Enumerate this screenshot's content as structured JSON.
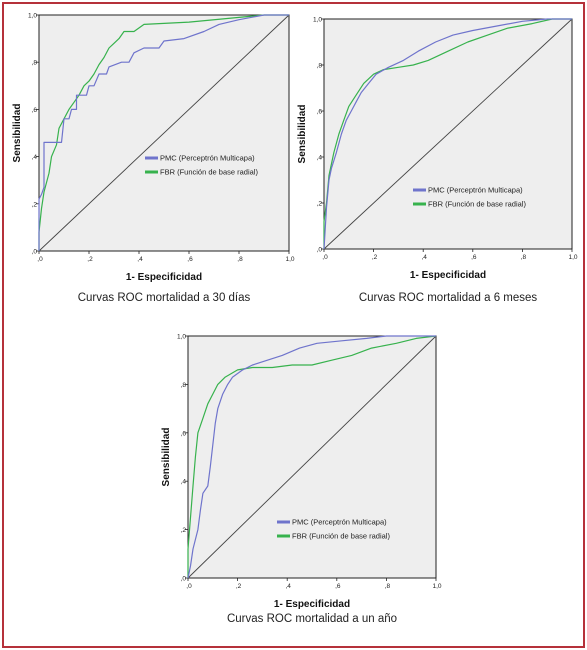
{
  "colors": {
    "frame": "#b5313a",
    "plot_bg": "#eeeeee",
    "pmc": "#6f74cc",
    "fbr": "#37b24d",
    "diagonal": "#444444"
  },
  "chart_data": [
    {
      "type": "line",
      "caption": "Curvas ROC mortalidad a 30 días",
      "xlabel": "1- Especificidad",
      "ylabel": "Sensibilidad",
      "xlim": [
        0,
        1
      ],
      "ylim": [
        0,
        1
      ],
      "xticks": [
        ",0",
        ",2",
        ",4",
        ",6",
        ",8",
        "1,0"
      ],
      "yticks": [
        ",0",
        ",2",
        ",4",
        ",6",
        ",8",
        "1,0"
      ],
      "legend_position": "center-right",
      "reference_line": [
        [
          0,
          0
        ],
        [
          1,
          1
        ]
      ],
      "series": [
        {
          "name": "PMC (Perceptrón Multicapa)",
          "color": "#6f74cc",
          "points": [
            [
              0,
              0
            ],
            [
              0,
              0.22
            ],
            [
              0.01,
              0.24
            ],
            [
              0.02,
              0.27
            ],
            [
              0.02,
              0.46
            ],
            [
              0.09,
              0.46
            ],
            [
              0.1,
              0.56
            ],
            [
              0.12,
              0.56
            ],
            [
              0.13,
              0.6
            ],
            [
              0.15,
              0.6
            ],
            [
              0.15,
              0.66
            ],
            [
              0.19,
              0.66
            ],
            [
              0.2,
              0.7
            ],
            [
              0.22,
              0.7
            ],
            [
              0.24,
              0.75
            ],
            [
              0.27,
              0.75
            ],
            [
              0.28,
              0.78
            ],
            [
              0.33,
              0.8
            ],
            [
              0.36,
              0.8
            ],
            [
              0.38,
              0.84
            ],
            [
              0.42,
              0.86
            ],
            [
              0.48,
              0.86
            ],
            [
              0.5,
              0.89
            ],
            [
              0.58,
              0.9
            ],
            [
              0.66,
              0.93
            ],
            [
              0.72,
              0.96
            ],
            [
              0.8,
              0.98
            ],
            [
              0.9,
              1.0
            ],
            [
              1.0,
              1.0
            ]
          ]
        },
        {
          "name": "FBR (Función de base radial)",
          "color": "#37b24d",
          "points": [
            [
              0,
              0
            ],
            [
              0,
              0.08
            ],
            [
              0.01,
              0.18
            ],
            [
              0.02,
              0.25
            ],
            [
              0.04,
              0.33
            ],
            [
              0.05,
              0.4
            ],
            [
              0.07,
              0.45
            ],
            [
              0.08,
              0.52
            ],
            [
              0.1,
              0.56
            ],
            [
              0.12,
              0.6
            ],
            [
              0.14,
              0.63
            ],
            [
              0.16,
              0.66
            ],
            [
              0.18,
              0.7
            ],
            [
              0.2,
              0.72
            ],
            [
              0.22,
              0.75
            ],
            [
              0.24,
              0.79
            ],
            [
              0.26,
              0.82
            ],
            [
              0.28,
              0.86
            ],
            [
              0.3,
              0.88
            ],
            [
              0.32,
              0.9
            ],
            [
              0.34,
              0.93
            ],
            [
              0.38,
              0.93
            ],
            [
              0.42,
              0.96
            ],
            [
              0.6,
              0.97
            ],
            [
              0.8,
              0.99
            ],
            [
              0.9,
              1.0
            ],
            [
              1.0,
              1.0
            ]
          ]
        }
      ]
    },
    {
      "type": "line",
      "caption": "Curvas ROC mortalidad a 6 meses",
      "xlabel": "1- Especificidad",
      "ylabel": "Sensibilidad",
      "xlim": [
        0,
        1
      ],
      "ylim": [
        0,
        1
      ],
      "xticks": [
        ",0",
        ",2",
        ",4",
        ",6",
        ",8",
        "1,0"
      ],
      "yticks": [
        ",0",
        ",2",
        ",4",
        ",6",
        ",8",
        "1,0"
      ],
      "legend_position": "bottom-right",
      "reference_line": [
        [
          0,
          0
        ],
        [
          1,
          1
        ]
      ],
      "series": [
        {
          "name": "PMC (Perceptrón Multicapa)",
          "color": "#6f74cc",
          "points": [
            [
              0,
              0
            ],
            [
              0.01,
              0.18
            ],
            [
              0.02,
              0.3
            ],
            [
              0.03,
              0.35
            ],
            [
              0.05,
              0.42
            ],
            [
              0.07,
              0.5
            ],
            [
              0.09,
              0.56
            ],
            [
              0.11,
              0.6
            ],
            [
              0.13,
              0.64
            ],
            [
              0.15,
              0.68
            ],
            [
              0.18,
              0.72
            ],
            [
              0.21,
              0.76
            ],
            [
              0.26,
              0.79
            ],
            [
              0.32,
              0.82
            ],
            [
              0.38,
              0.86
            ],
            [
              0.45,
              0.9
            ],
            [
              0.52,
              0.93
            ],
            [
              0.6,
              0.95
            ],
            [
              0.7,
              0.97
            ],
            [
              0.8,
              0.99
            ],
            [
              0.9,
              1.0
            ],
            [
              1.0,
              1.0
            ]
          ]
        },
        {
          "name": "FBR (Función de base radial)",
          "color": "#37b24d",
          "points": [
            [
              0,
              0
            ],
            [
              0,
              0.12
            ],
            [
              0.01,
              0.2
            ],
            [
              0.02,
              0.32
            ],
            [
              0.04,
              0.42
            ],
            [
              0.06,
              0.5
            ],
            [
              0.08,
              0.56
            ],
            [
              0.1,
              0.62
            ],
            [
              0.13,
              0.67
            ],
            [
              0.16,
              0.72
            ],
            [
              0.2,
              0.76
            ],
            [
              0.24,
              0.78
            ],
            [
              0.3,
              0.79
            ],
            [
              0.36,
              0.8
            ],
            [
              0.42,
              0.82
            ],
            [
              0.5,
              0.86
            ],
            [
              0.58,
              0.9
            ],
            [
              0.66,
              0.93
            ],
            [
              0.74,
              0.96
            ],
            [
              0.84,
              0.98
            ],
            [
              0.92,
              1.0
            ],
            [
              1.0,
              1.0
            ]
          ]
        }
      ]
    },
    {
      "type": "line",
      "caption": "Curvas ROC mortalidad a un año",
      "xlabel": "1- Especificidad",
      "ylabel": "Sensibilidad",
      "xlim": [
        0,
        1
      ],
      "ylim": [
        0,
        1
      ],
      "xticks": [
        ",0",
        ",2",
        ",4",
        ",6",
        ",8",
        "1,0"
      ],
      "yticks": [
        ",0",
        ",2",
        ",4",
        ",6",
        ",8",
        "1,0"
      ],
      "legend_position": "bottom-right",
      "reference_line": [
        [
          0,
          0
        ],
        [
          1,
          1
        ]
      ],
      "series": [
        {
          "name": "PMC (Perceptrón Multicapa)",
          "color": "#6f74cc",
          "points": [
            [
              0,
              0
            ],
            [
              0.01,
              0.05
            ],
            [
              0.02,
              0.12
            ],
            [
              0.04,
              0.2
            ],
            [
              0.05,
              0.28
            ],
            [
              0.06,
              0.35
            ],
            [
              0.08,
              0.38
            ],
            [
              0.09,
              0.46
            ],
            [
              0.1,
              0.55
            ],
            [
              0.11,
              0.64
            ],
            [
              0.12,
              0.7
            ],
            [
              0.14,
              0.76
            ],
            [
              0.16,
              0.8
            ],
            [
              0.18,
              0.83
            ],
            [
              0.22,
              0.86
            ],
            [
              0.26,
              0.88
            ],
            [
              0.32,
              0.9
            ],
            [
              0.38,
              0.92
            ],
            [
              0.45,
              0.95
            ],
            [
              0.52,
              0.97
            ],
            [
              0.62,
              0.98
            ],
            [
              0.72,
              0.99
            ],
            [
              0.8,
              1.0
            ],
            [
              1.0,
              1.0
            ]
          ]
        },
        {
          "name": "FBR (Función de base radial)",
          "color": "#37b24d",
          "points": [
            [
              0,
              0
            ],
            [
              0,
              0.12
            ],
            [
              0.01,
              0.25
            ],
            [
              0.02,
              0.38
            ],
            [
              0.03,
              0.5
            ],
            [
              0.04,
              0.6
            ],
            [
              0.06,
              0.66
            ],
            [
              0.08,
              0.72
            ],
            [
              0.1,
              0.76
            ],
            [
              0.12,
              0.8
            ],
            [
              0.15,
              0.83
            ],
            [
              0.2,
              0.86
            ],
            [
              0.26,
              0.87
            ],
            [
              0.34,
              0.87
            ],
            [
              0.42,
              0.88
            ],
            [
              0.5,
              0.88
            ],
            [
              0.58,
              0.9
            ],
            [
              0.66,
              0.92
            ],
            [
              0.74,
              0.95
            ],
            [
              0.84,
              0.97
            ],
            [
              0.92,
              0.99
            ],
            [
              1.0,
              1.0
            ]
          ]
        }
      ]
    }
  ]
}
